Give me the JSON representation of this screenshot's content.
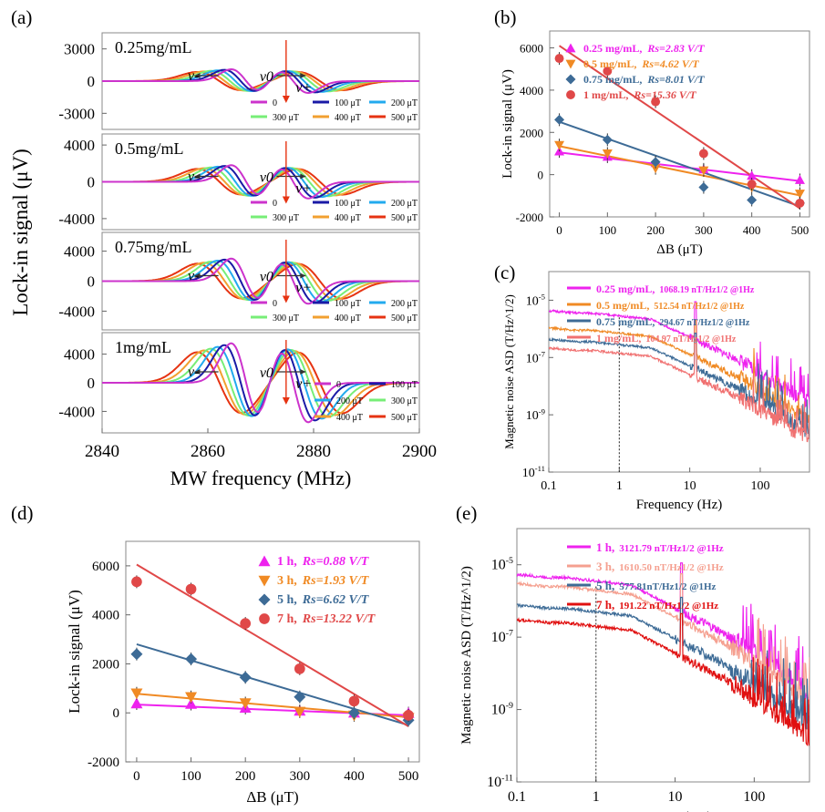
{
  "panel_labels": [
    "(a)",
    "(b)",
    "(c)",
    "(d)",
    "(e)"
  ],
  "colors": {
    "c0": "#cc33cc",
    "c100": "#1a1aa6",
    "c200": "#22aaee",
    "c300": "#77ee77",
    "c400": "#f2a030",
    "c500": "#e63312",
    "magenta": "#ee22ee",
    "orange": "#f08a24",
    "steel": "#3d6b96",
    "red": "#e04848",
    "salmon": "#f5a090",
    "darkred": "#e01010"
  },
  "chart_data": [
    {
      "id": "a",
      "type": "line",
      "xlabel": "MW frequency (MHz)",
      "ylabel": "Lock-in signal (μV)",
      "xlim": [
        2840,
        2900
      ],
      "xticks": [
        2840,
        2860,
        2880,
        2900
      ],
      "series_names": [
        "0",
        "100 μT",
        "200 μT",
        "300 μT",
        "400 μT",
        "500 μT"
      ],
      "field_shift_MHz_per_step": 1.0,
      "subpanels": [
        {
          "label": "0.25mg/mL",
          "ylim": [
            -4500,
            4500
          ],
          "yticks": [
            3000,
            0,
            -3000
          ],
          "amp": 1100,
          "nu1": 2867.2,
          "nu2": 2876.2,
          "width": 2.8,
          "nu_labels": [
            "ν-",
            "ν0",
            "ν+"
          ]
        },
        {
          "label": "0.5mg/mL",
          "ylim": [
            -5200,
            5200
          ],
          "yticks": [
            4000,
            0,
            -4000
          ],
          "amp": 1800,
          "nu1": 2867.2,
          "nu2": 2876.2,
          "width": 2.8,
          "nu_labels": [
            "ν-",
            "ν0",
            "ν+"
          ]
        },
        {
          "label": "0.75mg/mL",
          "ylim": [
            -6500,
            6500
          ],
          "yticks": [
            4000,
            0,
            -4000
          ],
          "amp": 3000,
          "nu1": 2867.2,
          "nu2": 2876.2,
          "width": 2.8,
          "nu_labels": [
            "ν-",
            "ν0",
            "ν+"
          ]
        },
        {
          "label": "1mg/mL",
          "ylim": [
            -7000,
            7000
          ],
          "yticks": [
            4000,
            0,
            -4000
          ],
          "amp": 5500,
          "nu1": 2867.2,
          "nu2": 2876.2,
          "width": 2.8,
          "nu_labels": [
            "ν-",
            "ν0",
            "ν+"
          ]
        }
      ]
    },
    {
      "id": "b",
      "type": "scatter",
      "xlabel": "ΔB (μT)",
      "ylabel": "Lock-in signal (μV)",
      "xlim": [
        -20,
        520
      ],
      "ylim": [
        -2000,
        6800
      ],
      "xticks": [
        0,
        100,
        200,
        300,
        400,
        500
      ],
      "yticks": [
        -2000,
        0,
        2000,
        4000,
        6000
      ],
      "x": [
        0,
        100,
        200,
        300,
        400,
        500
      ],
      "series": [
        {
          "name": "0.25 mg/mL,",
          "rs": "Rs=2.83 V/T",
          "marker": "triangle-up",
          "color": "#ee22ee",
          "values": [
            1100,
            850,
            550,
            250,
            -50,
            -250
          ],
          "fit": [
            1050,
            -300
          ]
        },
        {
          "name": "0.5 mg/mL,",
          "rs": "Rs=4.62 V/T",
          "marker": "triangle-down",
          "color": "#f08a24",
          "values": [
            1400,
            1000,
            300,
            200,
            -600,
            -900
          ],
          "fit": [
            1350,
            -980
          ]
        },
        {
          "name": "0.75 mg/mL,",
          "rs": "Rs=8.01 V/T",
          "marker": "diamond",
          "color": "#3d6b96",
          "values": [
            2600,
            1650,
            600,
            -600,
            -1200,
            -1350
          ],
          "fit": [
            2500,
            -1500
          ]
        },
        {
          "name": "1 mg/mL,",
          "rs": "Rs=15.36 V/T",
          "marker": "circle",
          "color": "#e04848",
          "values": [
            5500,
            4900,
            3450,
            1000,
            -450,
            -1350
          ],
          "fit": [
            6100,
            -1600
          ]
        }
      ]
    },
    {
      "id": "c",
      "type": "line",
      "xlabel": "Frequency (Hz)",
      "ylabel": "Magnetic noise ASD (T/Hz^1/2)",
      "xscale": "log",
      "yscale": "log",
      "xlim": [
        0.1,
        500
      ],
      "ylim_exp": [
        -11,
        -4
      ],
      "xticks": [
        "0.1",
        "1",
        "10",
        "100"
      ],
      "ytick_exps": [
        -5,
        -7,
        -9,
        -11
      ],
      "marker_line_x": 1,
      "series": [
        {
          "name": "0.25 mg/mL,",
          "note": "1068.19 nT/Hz1/2 @1Hz",
          "color": "#ee22ee",
          "level_log": -5.45
        },
        {
          "name": "0.5 mg/mL,",
          "note": "512.54 nT/Hz1/2 @1Hz",
          "color": "#f08a24",
          "level_log": -6.05
        },
        {
          "name": "0.75 mg/mL,",
          "note": "294.67 nT/Hz1/2 @1Hz",
          "color": "#3d6b96",
          "level_log": -6.45
        },
        {
          "name": "1 mg/mL,",
          "note": "104.97 nT/Hz1/2 @1Hz",
          "color": "#f07070",
          "level_log": -6.75
        }
      ]
    },
    {
      "id": "d",
      "type": "scatter",
      "xlabel": "ΔB (μT)",
      "ylabel": "Lock-in signal (μV)",
      "xlim": [
        -20,
        520
      ],
      "ylim": [
        -2000,
        7000
      ],
      "xticks": [
        0,
        100,
        200,
        300,
        400,
        500
      ],
      "yticks": [
        -2000,
        0,
        2000,
        4000,
        6000
      ],
      "x": [
        0,
        100,
        200,
        300,
        400,
        500
      ],
      "series": [
        {
          "name": "1 h,",
          "rs": "Rs=0.88 V/T",
          "marker": "triangle-up",
          "color": "#ee22ee",
          "values": [
            380,
            360,
            200,
            80,
            0,
            -10
          ],
          "fit": [
            340,
            -100
          ]
        },
        {
          "name": "3 h,",
          "rs": "Rs=1.93 V/T",
          "marker": "triangle-down",
          "color": "#f08a24",
          "values": [
            800,
            650,
            400,
            50,
            -100,
            -200
          ],
          "fit": [
            780,
            -180
          ]
        },
        {
          "name": "5 h,",
          "rs": "Rs=6.62 V/T",
          "marker": "diamond",
          "color": "#3d6b96",
          "values": [
            2400,
            2200,
            1450,
            650,
            0,
            -300
          ],
          "fit": [
            2800,
            -500
          ]
        },
        {
          "name": "7 h,",
          "rs": "Rs=13.22 V/T",
          "marker": "circle",
          "color": "#e04848",
          "values": [
            5350,
            5050,
            3650,
            1800,
            480,
            -100
          ],
          "fit": [
            6050,
            -550
          ]
        }
      ]
    },
    {
      "id": "e",
      "type": "line",
      "xlabel": "Frequency (Hz)",
      "ylabel": "Magnetic noise ASD (T/Hz^1/2)",
      "xscale": "log",
      "yscale": "log",
      "xlim": [
        0.1,
        500
      ],
      "ylim_exp": [
        -11,
        -4
      ],
      "xticks": [
        "0.1",
        "1",
        "10",
        "100"
      ],
      "ytick_exps": [
        -5,
        -7,
        -9,
        -11
      ],
      "marker_line_x": 1,
      "series": [
        {
          "name": "1 h,",
          "note": "3121.79 nT/Hz1/2 @1Hz",
          "color": "#ee22ee",
          "level_log": -5.35
        },
        {
          "name": "3 h,",
          "note": "1610.50 nT/Hz1/2 @1Hz",
          "color": "#f5a090",
          "level_log": -5.6
        },
        {
          "name": "5 h,",
          "note": "577.81nT/Hz1/2 @1Hz",
          "color": "#3d6b96",
          "level_log": -6.2
        },
        {
          "name": "7 h,",
          "note": "191.22 nT/Hz1/2 @1Hz",
          "color": "#e01010",
          "level_log": -6.6
        }
      ]
    }
  ]
}
